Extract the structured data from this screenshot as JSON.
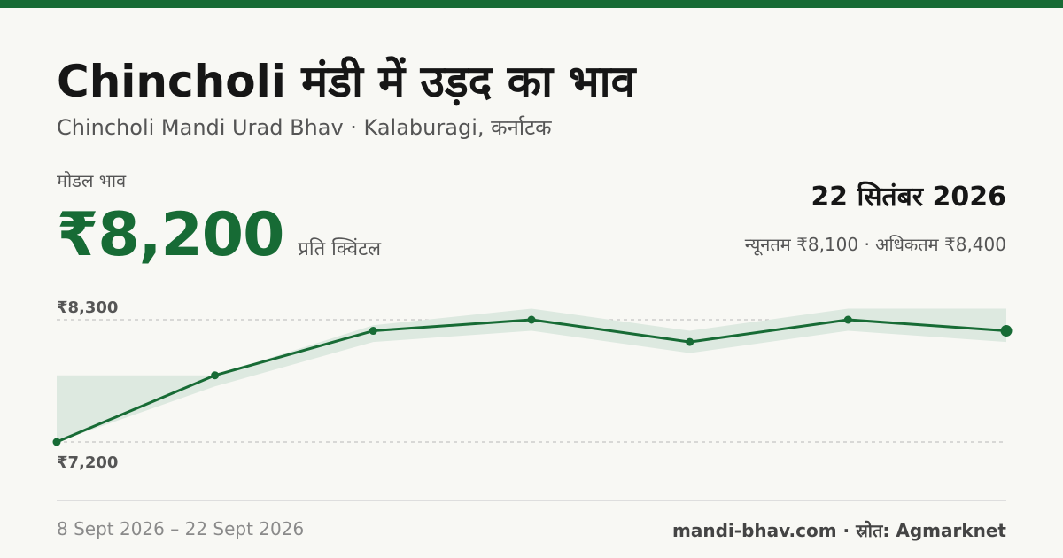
{
  "header": {
    "title": "Chincholi मंडी में उड़द का भाव",
    "subtitle": "Chincholi Mandi Urad Bhav · Kalaburagi, कर्नाटक"
  },
  "price": {
    "label": "मोडल भाव",
    "value": "₹8,200",
    "unit": "प्रति क्विंटल"
  },
  "summary": {
    "date": "22 सितंबर 2026",
    "minmax": "न्यूनतम ₹8,100 · अधिकतम ₹8,400"
  },
  "footer": {
    "date_range": "8 Sept 2026 – 22 Sept 2026",
    "source": "mandi-bhav.com · स्रोत: Agmarknet"
  },
  "colors": {
    "accent": "#176b35",
    "band": "#dde9e0",
    "grid": "#b9b9b9"
  },
  "chart_data": {
    "type": "line",
    "y_unit": "₹ per quintal",
    "ylim": [
      7200,
      8300
    ],
    "y_ticks": [
      {
        "value": 8300,
        "label": "₹8,300"
      },
      {
        "value": 7200,
        "label": "₹7,200"
      }
    ],
    "grid": true,
    "series": [
      {
        "values": [
          7200,
          7800,
          8200,
          8300,
          8100,
          8300,
          8200
        ]
      }
    ],
    "band": {
      "min": [
        7200,
        7700,
        8100,
        8200,
        8000,
        8200,
        8100
      ],
      "max": [
        7800,
        7800,
        8250,
        8400,
        8200,
        8400,
        8400
      ]
    }
  }
}
